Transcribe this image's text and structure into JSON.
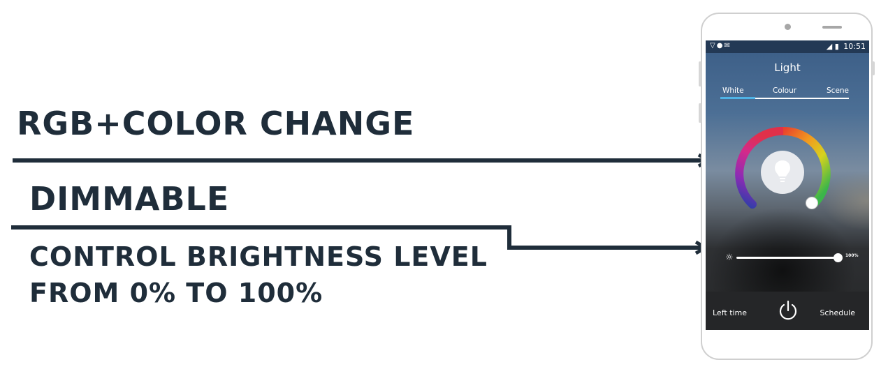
{
  "headline": {
    "rgb": "RGB+COLOR CHANGE",
    "dimmable": "DIMMABLE",
    "brightness_line1": "CONTROL BRIGHTNESS LEVEL",
    "brightness_line2": "FROM 0% TO 100%"
  },
  "phone": {
    "status_bar": {
      "left_icons": [
        "wifi-icon",
        "chat-icon",
        "mail-icon"
      ],
      "right_icons": [
        "signal-icon",
        "battery-icon"
      ],
      "time": "10:51"
    },
    "title": "Light",
    "tabs": [
      {
        "label": "White",
        "active": true
      },
      {
        "label": "Colour",
        "active": false
      },
      {
        "label": "Scene",
        "active": false
      }
    ],
    "brightness": {
      "value_label": "100%",
      "level": 1.0
    },
    "bottom_bar": {
      "left_label": "Left time",
      "right_label": "Schedule",
      "center_icon": "power-icon"
    }
  },
  "colors": {
    "headline_text": "#1f2d3a",
    "tab_active": "#4fb3e6"
  }
}
